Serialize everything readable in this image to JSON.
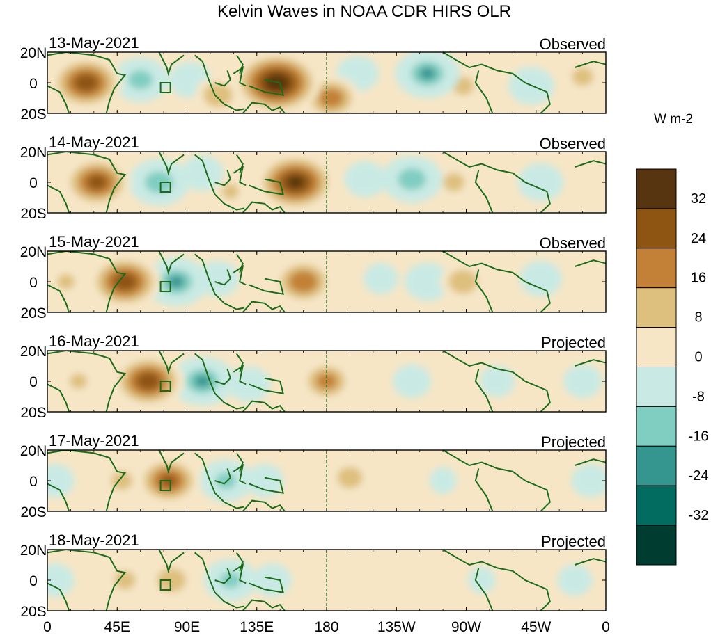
{
  "chart_data": {
    "type": "heatmap",
    "title": "Kelvin Waves in NOAA CDR HIRS OLR",
    "units_label": "W m-2",
    "y_ticks": [
      "20N",
      "0",
      "20S"
    ],
    "x_ticks": [
      "0",
      "45E",
      "90E",
      "135E",
      "180",
      "135W",
      "90W",
      "45W",
      "0"
    ],
    "x_tick_lons": [
      0,
      45,
      90,
      135,
      180,
      225,
      270,
      315,
      360
    ],
    "lat_range": [
      -20,
      20
    ],
    "lon_range": [
      0,
      360
    ],
    "colorbar": {
      "labels": [
        "32",
        "24",
        "16",
        "8",
        "0",
        "-8",
        "-16",
        "-24",
        "-32"
      ],
      "levels": [
        32,
        24,
        16,
        8,
        0,
        -8,
        -16,
        -24,
        -32
      ],
      "colors_top_to_bottom": [
        "#573510",
        "#8d5412",
        "#c28136",
        "#dec07e",
        "#f6e6c6",
        "#c9eae4",
        "#80cdc1",
        "#359690",
        "#016c5f",
        "#003c30"
      ]
    },
    "panels": [
      {
        "date": "13-May-2021",
        "status": "Observed",
        "anomalies": [
          {
            "lon": 25,
            "lat": 0,
            "value": 28
          },
          {
            "lon": 60,
            "lat": 2,
            "value": -20
          },
          {
            "lon": 92,
            "lat": 2,
            "value": -12
          },
          {
            "lon": 110,
            "lat": -8,
            "value": 14
          },
          {
            "lon": 148,
            "lat": 0,
            "value": 36
          },
          {
            "lon": 183,
            "lat": -10,
            "value": 20
          },
          {
            "lon": 200,
            "lat": 6,
            "value": -12
          },
          {
            "lon": 245,
            "lat": 6,
            "value": -24
          },
          {
            "lon": 268,
            "lat": -2,
            "value": 10
          },
          {
            "lon": 312,
            "lat": -2,
            "value": -14
          },
          {
            "lon": 345,
            "lat": 4,
            "value": 10
          }
        ]
      },
      {
        "date": "14-May-2021",
        "status": "Observed",
        "anomalies": [
          {
            "lon": 32,
            "lat": 0,
            "value": 26
          },
          {
            "lon": 72,
            "lat": 0,
            "value": -22
          },
          {
            "lon": 100,
            "lat": 6,
            "value": -12
          },
          {
            "lon": 118,
            "lat": -6,
            "value": 8
          },
          {
            "lon": 160,
            "lat": 0,
            "value": 32
          },
          {
            "lon": 205,
            "lat": 2,
            "value": -12
          },
          {
            "lon": 235,
            "lat": 2,
            "value": -22
          },
          {
            "lon": 262,
            "lat": 0,
            "value": 10
          },
          {
            "lon": 318,
            "lat": 0,
            "value": -14
          }
        ]
      },
      {
        "date": "15-May-2021",
        "status": "Observed",
        "anomalies": [
          {
            "lon": 50,
            "lat": 0,
            "value": 28
          },
          {
            "lon": 83,
            "lat": 0,
            "value": -24
          },
          {
            "lon": 110,
            "lat": 2,
            "value": -12
          },
          {
            "lon": 12,
            "lat": 0,
            "value": 8
          },
          {
            "lon": 165,
            "lat": 0,
            "value": 22
          },
          {
            "lon": 215,
            "lat": 2,
            "value": -8
          },
          {
            "lon": 245,
            "lat": 0,
            "value": -14
          },
          {
            "lon": 268,
            "lat": 0,
            "value": 14
          },
          {
            "lon": 318,
            "lat": 2,
            "value": -12
          }
        ]
      },
      {
        "date": "16-May-2021",
        "status": "Projected",
        "anomalies": [
          {
            "lon": 65,
            "lat": 0,
            "value": 28
          },
          {
            "lon": 100,
            "lat": 0,
            "value": -24
          },
          {
            "lon": 130,
            "lat": -2,
            "value": -12
          },
          {
            "lon": 20,
            "lat": 0,
            "value": 8
          },
          {
            "lon": 180,
            "lat": 0,
            "value": 18
          },
          {
            "lon": 235,
            "lat": 0,
            "value": -10
          },
          {
            "lon": 290,
            "lat": 0,
            "value": -8
          },
          {
            "lon": 345,
            "lat": 0,
            "value": -10
          }
        ]
      },
      {
        "date": "17-May-2021",
        "status": "Projected",
        "anomalies": [
          {
            "lon": 78,
            "lat": 0,
            "value": 24
          },
          {
            "lon": 48,
            "lat": 0,
            "value": 10
          },
          {
            "lon": 115,
            "lat": 0,
            "value": -18
          },
          {
            "lon": 140,
            "lat": 0,
            "value": -10
          },
          {
            "lon": 5,
            "lat": 0,
            "value": -10
          },
          {
            "lon": 195,
            "lat": 2,
            "value": 12
          },
          {
            "lon": 255,
            "lat": 0,
            "value": -4
          },
          {
            "lon": 350,
            "lat": 0,
            "value": -10
          }
        ]
      },
      {
        "date": "18-May-2021",
        "status": "Projected",
        "anomalies": [
          {
            "lon": 80,
            "lat": 0,
            "value": 14
          },
          {
            "lon": 50,
            "lat": 0,
            "value": 10
          },
          {
            "lon": 118,
            "lat": 0,
            "value": -18
          },
          {
            "lon": 145,
            "lat": 0,
            "value": -10
          },
          {
            "lon": 5,
            "lat": 0,
            "value": -10
          },
          {
            "lon": 210,
            "lat": 0,
            "value": 6
          },
          {
            "lon": 280,
            "lat": 0,
            "value": -4
          },
          {
            "lon": 340,
            "lat": 0,
            "value": -8
          }
        ]
      }
    ]
  }
}
